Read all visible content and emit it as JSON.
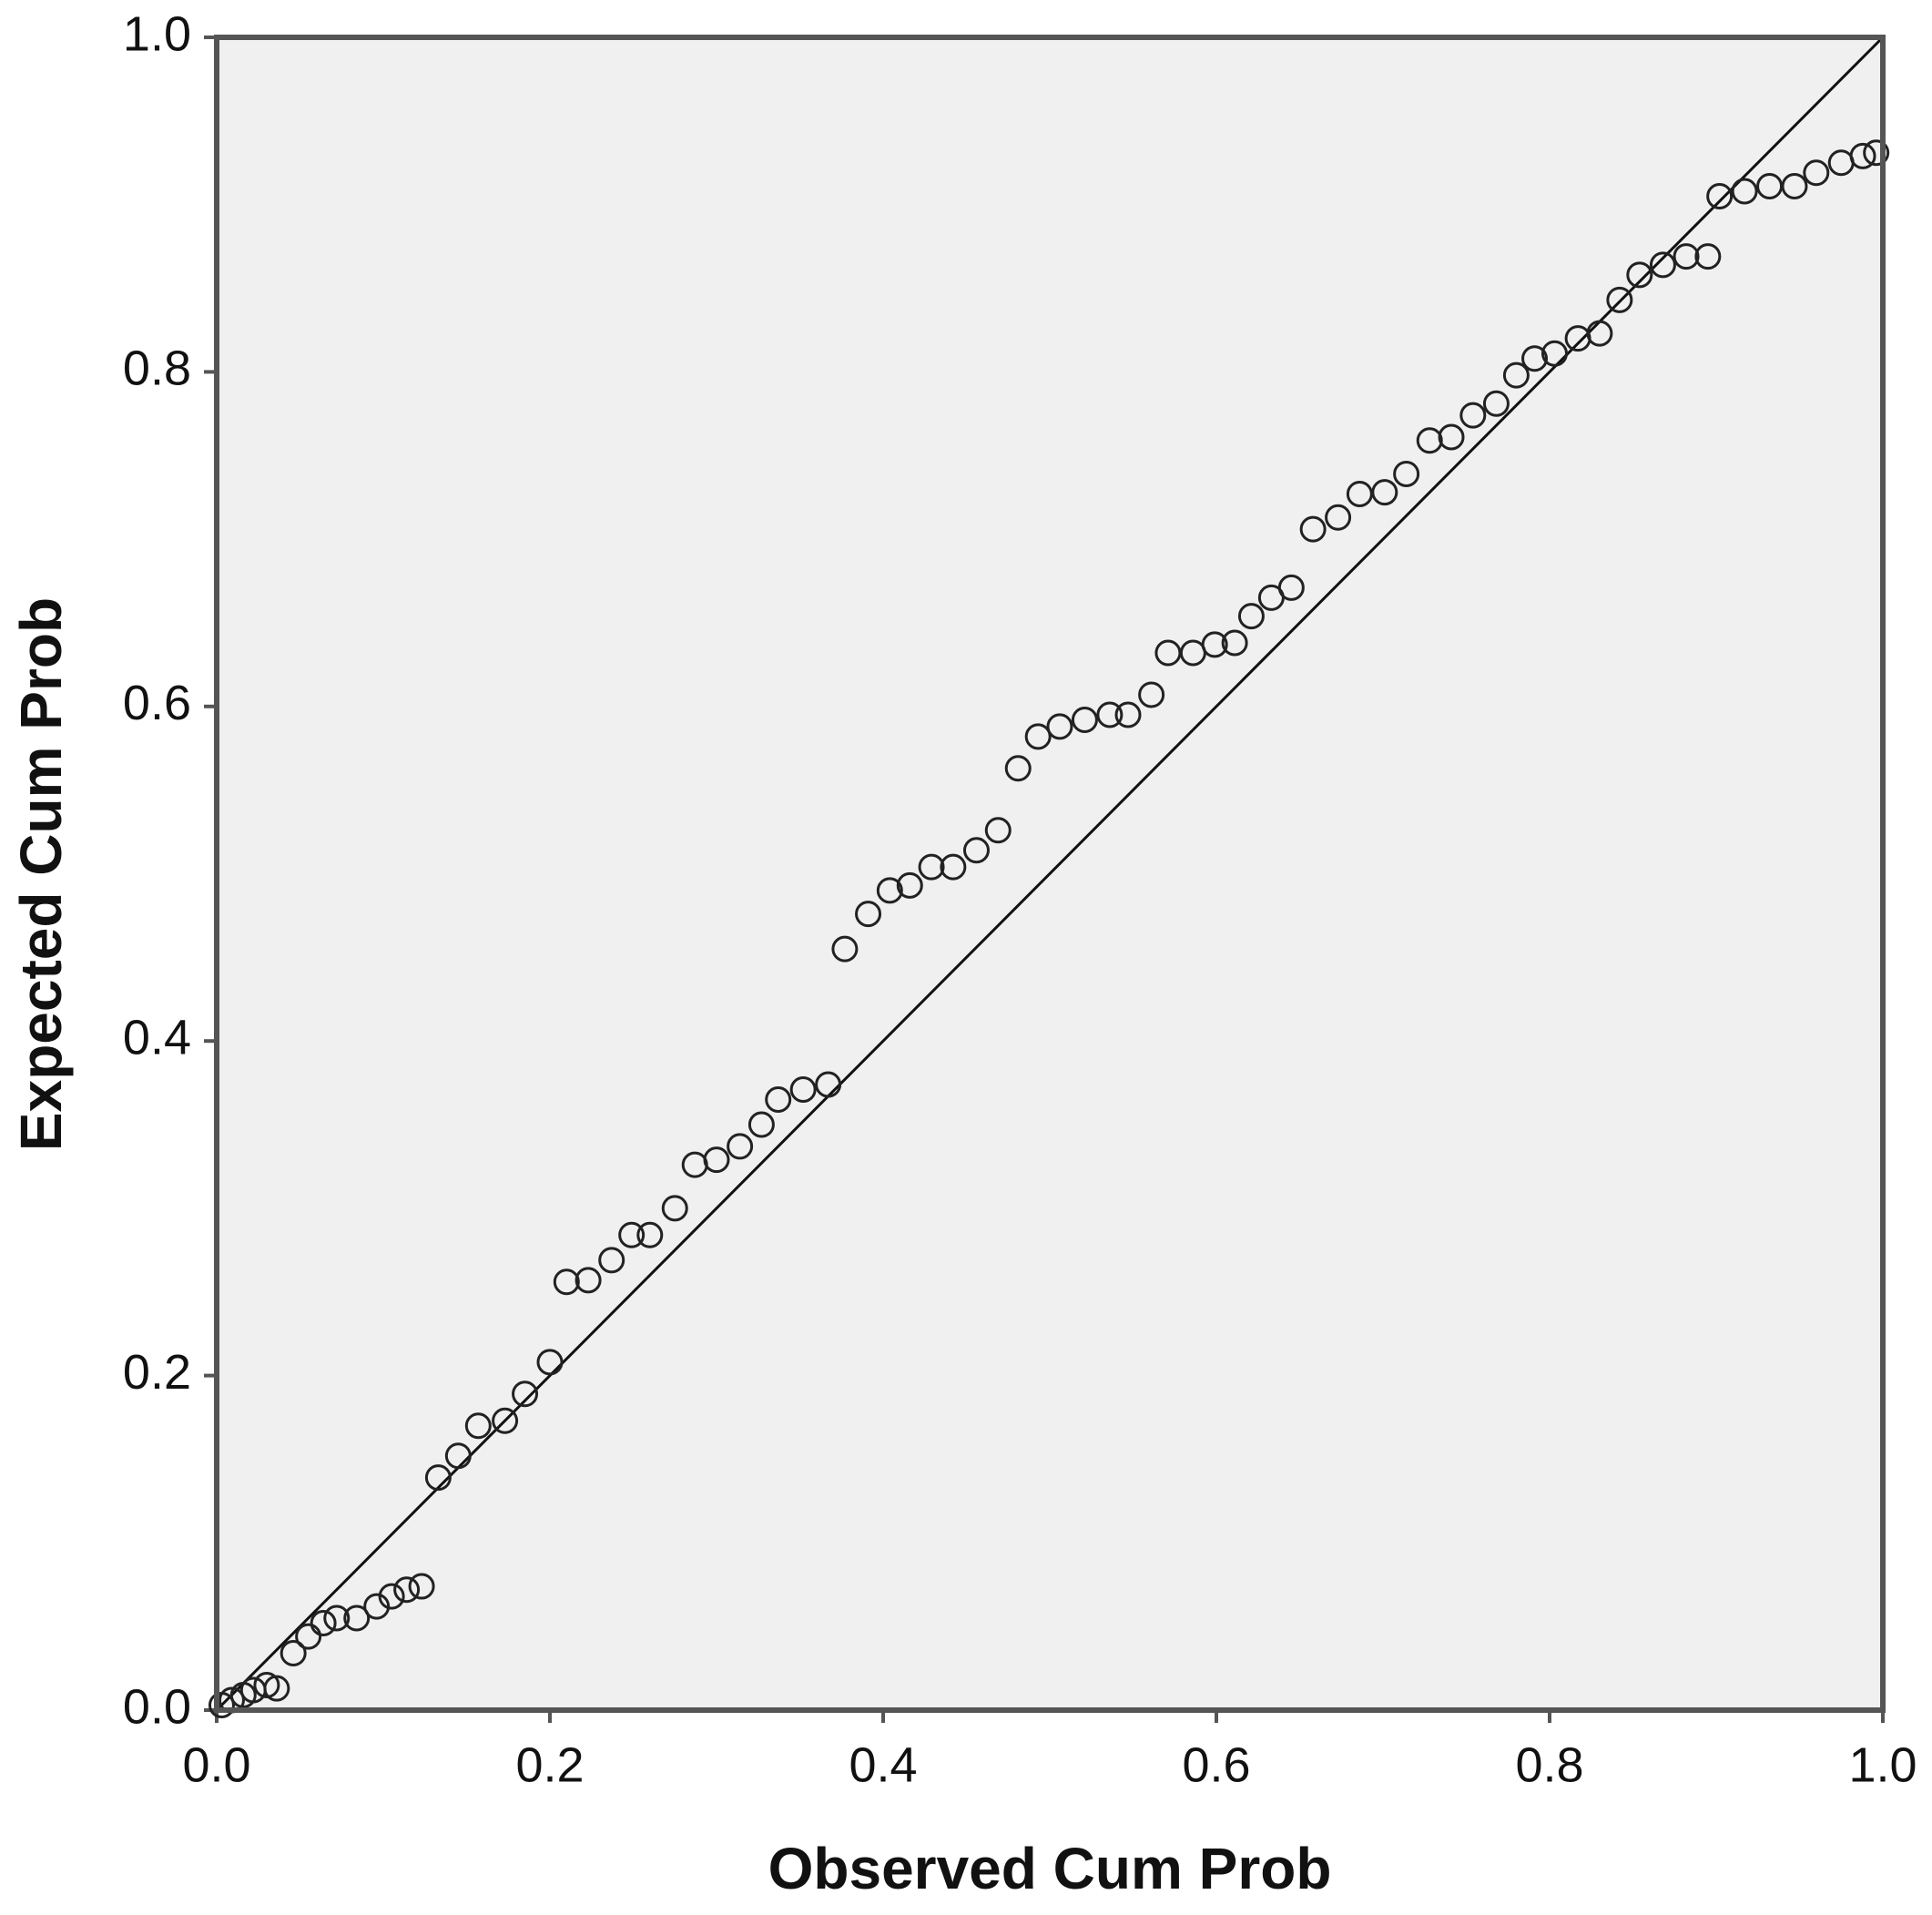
{
  "chart_data": {
    "type": "scatter",
    "x_label": "Observed Cum Prob",
    "y_label": "Expected Cum Prob",
    "x": [
      0.003,
      0.009,
      0.016,
      0.022,
      0.03,
      0.036,
      0.046,
      0.055,
      0.064,
      0.072,
      0.084,
      0.096,
      0.105,
      0.114,
      0.123,
      0.133,
      0.145,
      0.157,
      0.173,
      0.185,
      0.2,
      0.21,
      0.223,
      0.237,
      0.249,
      0.26,
      0.275,
      0.287,
      0.3,
      0.314,
      0.327,
      0.337,
      0.352,
      0.367,
      0.377,
      0.391,
      0.404,
      0.416,
      0.429,
      0.442,
      0.456,
      0.469,
      0.481,
      0.493,
      0.506,
      0.521,
      0.536,
      0.547,
      0.561,
      0.571,
      0.586,
      0.599,
      0.611,
      0.621,
      0.633,
      0.645,
      0.658,
      0.673,
      0.686,
      0.701,
      0.714,
      0.728,
      0.741,
      0.754,
      0.768,
      0.78,
      0.791,
      0.803,
      0.817,
      0.83,
      0.842,
      0.854,
      0.868,
      0.882,
      0.895,
      0.902,
      0.917,
      0.932,
      0.947,
      0.96,
      0.975,
      0.988,
      0.996
    ],
    "values": [
      0.003,
      0.006,
      0.009,
      0.012,
      0.015,
      0.013,
      0.034,
      0.044,
      0.052,
      0.055,
      0.055,
      0.062,
      0.068,
      0.072,
      0.074,
      0.139,
      0.152,
      0.17,
      0.173,
      0.189,
      0.208,
      0.256,
      0.257,
      0.269,
      0.284,
      0.284,
      0.3,
      0.326,
      0.329,
      0.337,
      0.35,
      0.365,
      0.371,
      0.374,
      0.455,
      0.476,
      0.49,
      0.493,
      0.504,
      0.504,
      0.514,
      0.526,
      0.563,
      0.582,
      0.588,
      0.592,
      0.595,
      0.595,
      0.607,
      0.632,
      0.632,
      0.637,
      0.638,
      0.654,
      0.665,
      0.671,
      0.706,
      0.713,
      0.727,
      0.728,
      0.739,
      0.759,
      0.761,
      0.774,
      0.781,
      0.798,
      0.808,
      0.811,
      0.82,
      0.823,
      0.843,
      0.858,
      0.864,
      0.869,
      0.869,
      0.905,
      0.908,
      0.911,
      0.911,
      0.919,
      0.925,
      0.929,
      0.931
    ],
    "color": "#222222",
    "plot_background": "#f0f0f0",
    "reference_line": true,
    "xlim": [
      0,
      1
    ],
    "ylim": [
      0,
      1
    ],
    "xticks": [
      {
        "value": 0,
        "label": "0.0"
      },
      0.2,
      0.4,
      0.6,
      0.8,
      {
        "value": 1,
        "label": "1.0"
      }
    ],
    "yticks": [
      {
        "value": 0,
        "label": "0.0"
      },
      0.2,
      0.4,
      0.6,
      0.8,
      {
        "value": 1,
        "label": "1.0"
      }
    ]
  }
}
